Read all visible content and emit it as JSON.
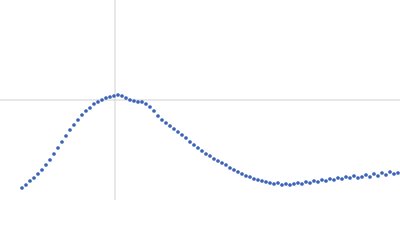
{
  "chart_data": {
    "type": "scatter",
    "x": [
      22,
      26,
      30,
      34,
      38,
      42,
      46,
      50,
      54,
      58,
      62,
      66,
      70,
      74,
      78,
      82,
      86,
      90,
      94,
      98,
      102,
      106,
      110,
      114,
      118,
      122,
      126,
      130,
      134,
      138,
      142,
      146,
      150,
      154,
      158,
      162,
      166,
      170,
      174,
      178,
      182,
      186,
      190,
      194,
      198,
      202,
      206,
      210,
      214,
      218,
      222,
      226,
      230,
      234,
      238,
      242,
      246,
      250,
      254,
      258,
      262,
      266,
      270,
      274,
      278,
      282,
      286,
      290,
      294,
      298,
      302,
      306,
      310,
      314,
      318,
      322,
      326,
      330,
      334,
      338,
      342,
      346,
      350,
      354,
      358,
      362,
      366,
      370,
      374,
      378,
      382,
      386,
      390,
      394,
      398
    ],
    "series": [
      {
        "color": "#3a63b8",
        "values": [
          12,
          15,
          19,
          22,
          26,
          30,
          35,
          40,
          46,
          52,
          58,
          64,
          70,
          75,
          80,
          85,
          89,
          92,
          96,
          98,
          100,
          102,
          103,
          104,
          105,
          104,
          102,
          100,
          99,
          98,
          98,
          96,
          93,
          89,
          84,
          80,
          77,
          74,
          71,
          68,
          65,
          62,
          58,
          55,
          52,
          49,
          46,
          44,
          41,
          39,
          37,
          35,
          32,
          30,
          28,
          26,
          24,
          23,
          21,
          20,
          19,
          18,
          17,
          16,
          17,
          15,
          16,
          15,
          16,
          17,
          16,
          18,
          17,
          19,
          18,
          20,
          19,
          21,
          20,
          22,
          21,
          23,
          22,
          24,
          22,
          23,
          25,
          23,
          26,
          24,
          27,
          25,
          28,
          26,
          27
        ]
      }
    ],
    "xlim": [
      0,
      400
    ],
    "ylim": [
      0,
      200
    ],
    "vlines": [
      115
    ],
    "hlines": [
      100
    ]
  }
}
